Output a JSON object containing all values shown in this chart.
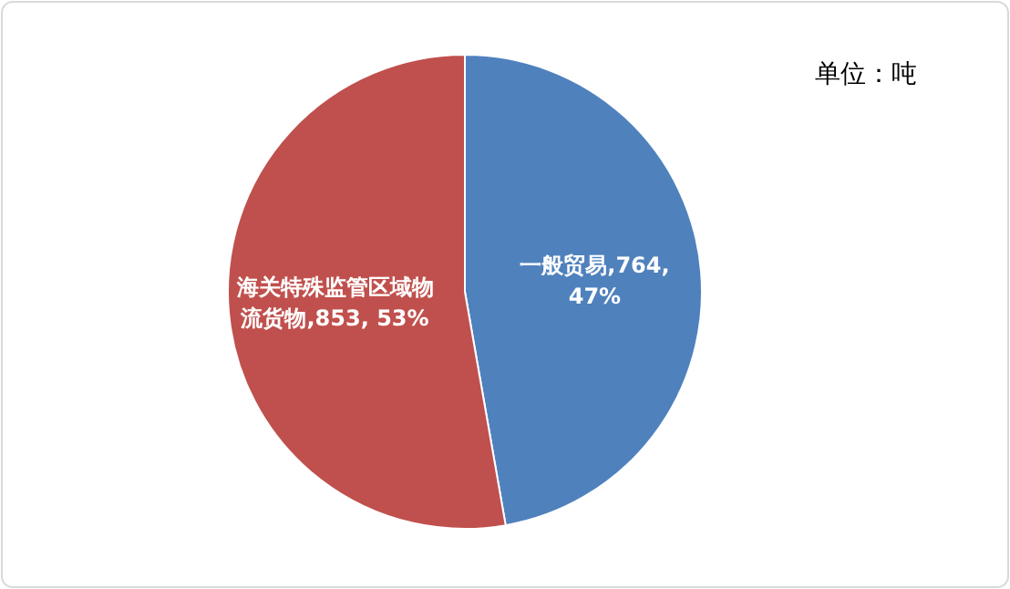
{
  "chart_data": {
    "type": "pie",
    "categories": [
      "一般贸易",
      "海关特殊监管区域物流货物"
    ],
    "values": [
      764,
      853
    ],
    "colors": [
      "#4f81bd",
      "#c0504d"
    ],
    "value_labels": [
      "764, 47%",
      "853, 53%"
    ],
    "annotations": [
      "单位：吨"
    ]
  }
}
